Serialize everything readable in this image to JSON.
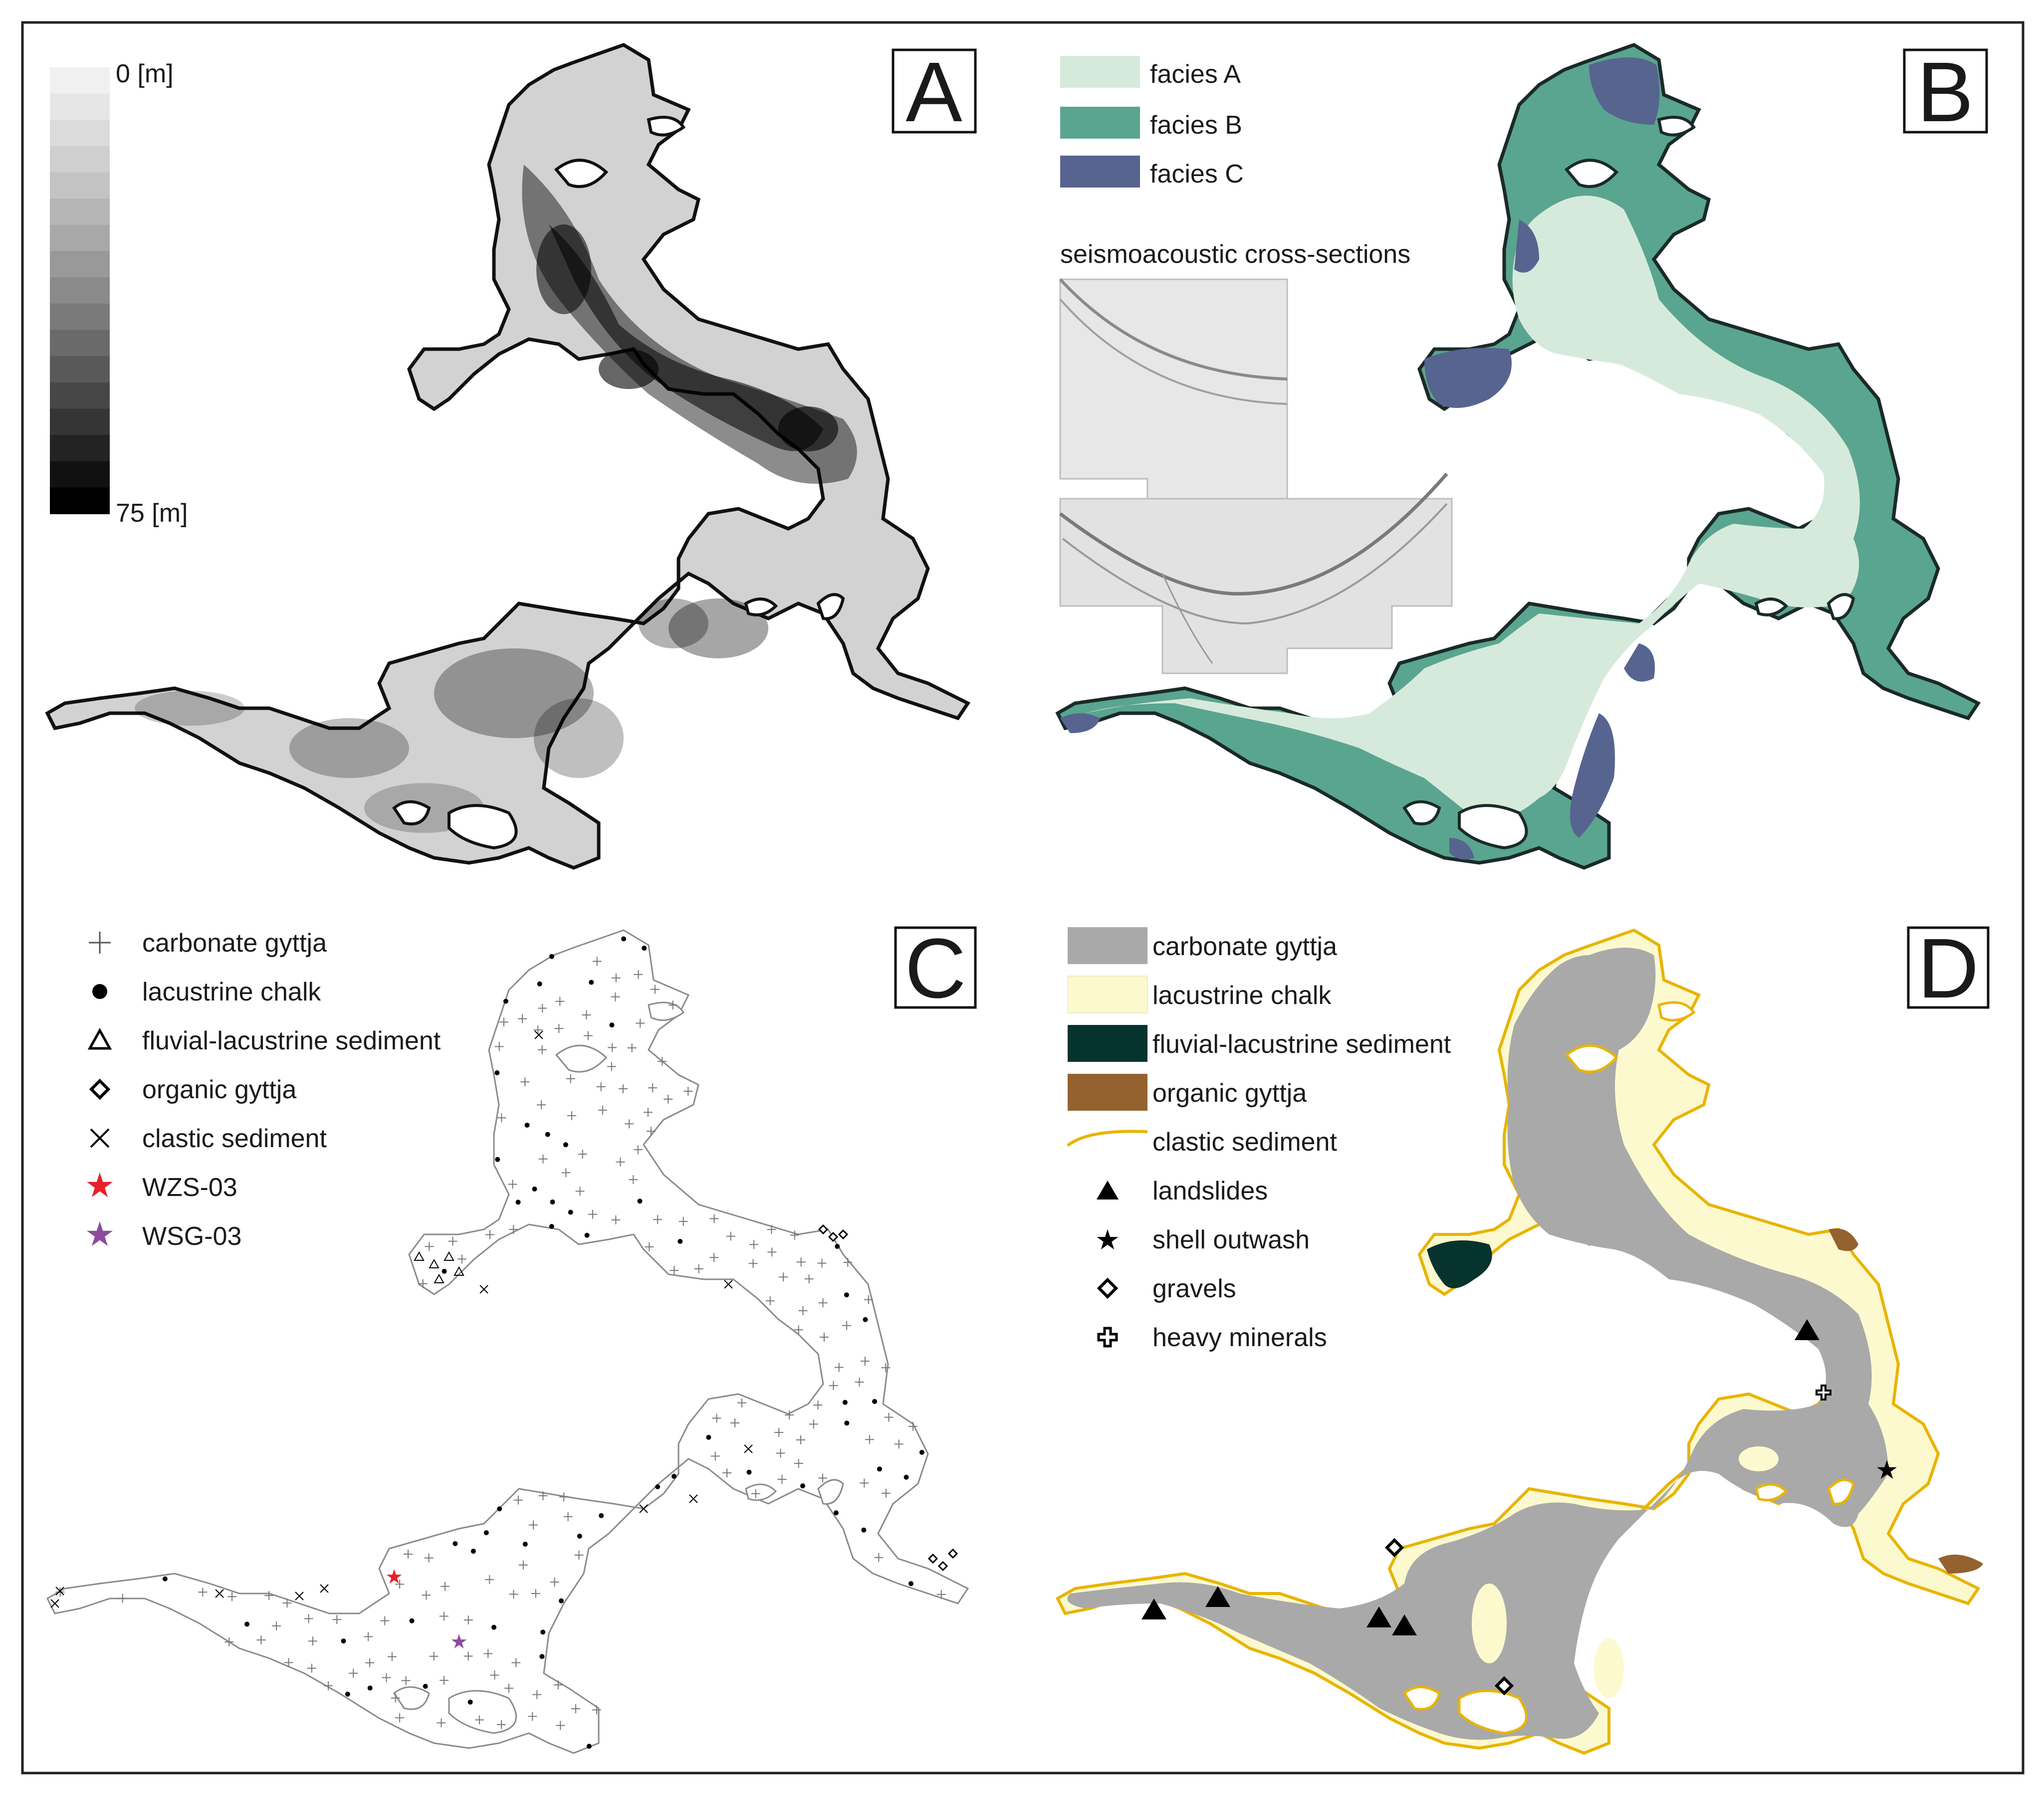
{
  "panels": {
    "a": {
      "letter": "A"
    },
    "b": {
      "letter": "B"
    },
    "c": {
      "letter": "C"
    },
    "d": {
      "letter": "D"
    }
  },
  "depth_scale": {
    "min_label": "0 [m]",
    "max_label": "75 [m]",
    "steps": [
      "#f0f0f0",
      "#e6e6e6",
      "#dbdbdb",
      "#cfcfcf",
      "#c3c3c3",
      "#b6b6b6",
      "#a8a8a8",
      "#999999",
      "#8a8a8a",
      "#7a7a7a",
      "#6a6a6a",
      "#595959",
      "#474747",
      "#353535",
      "#232323",
      "#111111",
      "#000000"
    ]
  },
  "facies_legend": [
    {
      "label": "facies A",
      "color": "#d6eadb"
    },
    {
      "label": "facies B",
      "color": "#5aa58f"
    },
    {
      "label": "facies C",
      "color": "#56648f"
    }
  ],
  "seismo_title": "seismoacoustic cross-sections",
  "points_legend": [
    {
      "label": "carbonate gyttja",
      "icon": "plus-icon"
    },
    {
      "label": "lacustrine chalk",
      "icon": "dot-icon"
    },
    {
      "label": "fluvial-lacustrine sediment",
      "icon": "triangle-outline-icon"
    },
    {
      "label": "organic gyttja",
      "icon": "diamond-outline-icon"
    },
    {
      "label": "clastic sediment",
      "icon": "cross-icon"
    },
    {
      "label": "WZS-03",
      "icon": "star-icon",
      "color": "#e8202a"
    },
    {
      "label": "WSG-03",
      "icon": "star-icon",
      "color": "#8e4b9e"
    }
  ],
  "sediment_legend": [
    {
      "label": "carbonate gyttja",
      "color": "#a9a9a9"
    },
    {
      "label": "lacustrine chalk",
      "color": "#fdf9cf"
    },
    {
      "label": "fluvial-lacustrine sediment",
      "color": "#07332e"
    },
    {
      "label": "organic gyttja",
      "color": "#94622f"
    },
    {
      "label": "clastic sediment",
      "color": "#e8b400"
    }
  ],
  "symbols_legend": [
    {
      "label": "landslides",
      "icon": "triangle-filled-icon"
    },
    {
      "label": "shell outwash",
      "icon": "star-filled-icon"
    },
    {
      "label": "gravels",
      "icon": "diamond-outline-icon"
    },
    {
      "label": "heavy minerals",
      "icon": "plus-outline-icon"
    }
  ]
}
